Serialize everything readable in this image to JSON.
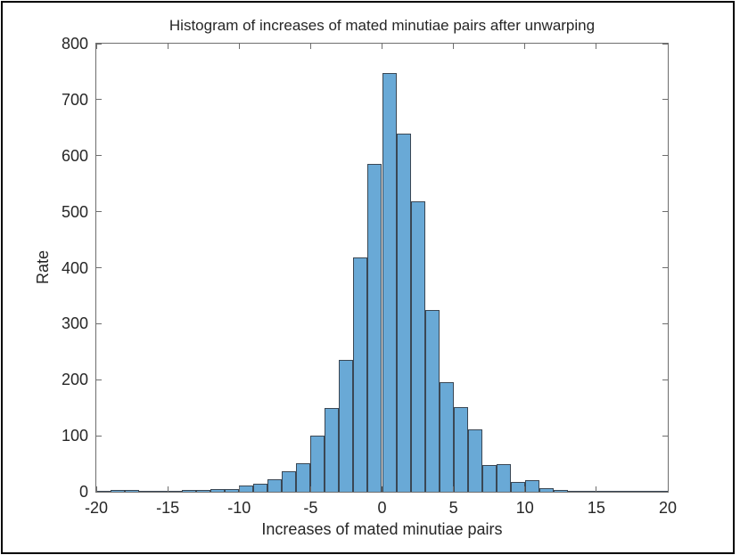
{
  "figure": {
    "title": "Histogram of increases of mated minutiae pairs after unwarping",
    "xlabel": "Increases of mated minutiae pairs",
    "ylabel": "Rate"
  },
  "chart_data": {
    "type": "bar",
    "subtype": "histogram",
    "title": "Histogram of increases of mated minutiae pairs after unwarping",
    "xlabel": "Increases of mated minutiae pairs",
    "ylabel": "Rate",
    "xlim": [
      -20,
      20
    ],
    "ylim": [
      0,
      800
    ],
    "xticks": [
      -20,
      -15,
      -10,
      -5,
      0,
      5,
      10,
      15,
      20
    ],
    "yticks": [
      0,
      100,
      200,
      300,
      400,
      500,
      600,
      700,
      800
    ],
    "grid": false,
    "legend": null,
    "bin_width": 1,
    "bin_starts": [
      -20,
      -19,
      -18,
      -17,
      -16,
      -15,
      -14,
      -13,
      -12,
      -11,
      -10,
      -9,
      -8,
      -7,
      -6,
      -5,
      -4,
      -3,
      -2,
      -1,
      0,
      1,
      2,
      3,
      4,
      5,
      6,
      7,
      8,
      9,
      10,
      11,
      12,
      13,
      14,
      15,
      16,
      17,
      18,
      19
    ],
    "values": [
      2,
      3,
      3,
      2,
      2,
      2,
      3,
      4,
      5,
      5,
      11,
      14,
      23,
      36,
      51,
      100,
      150,
      235,
      418,
      585,
      748,
      640,
      518,
      325,
      196,
      151,
      112,
      47,
      49,
      17,
      21,
      7,
      4,
      2,
      2,
      1,
      1,
      1,
      1,
      1
    ],
    "colors": {
      "bar_face": "#69A9D6",
      "bar_edge": "#3A4754",
      "axis": "#6e6e6e",
      "text": "#262626",
      "background": "#ffffff"
    }
  }
}
